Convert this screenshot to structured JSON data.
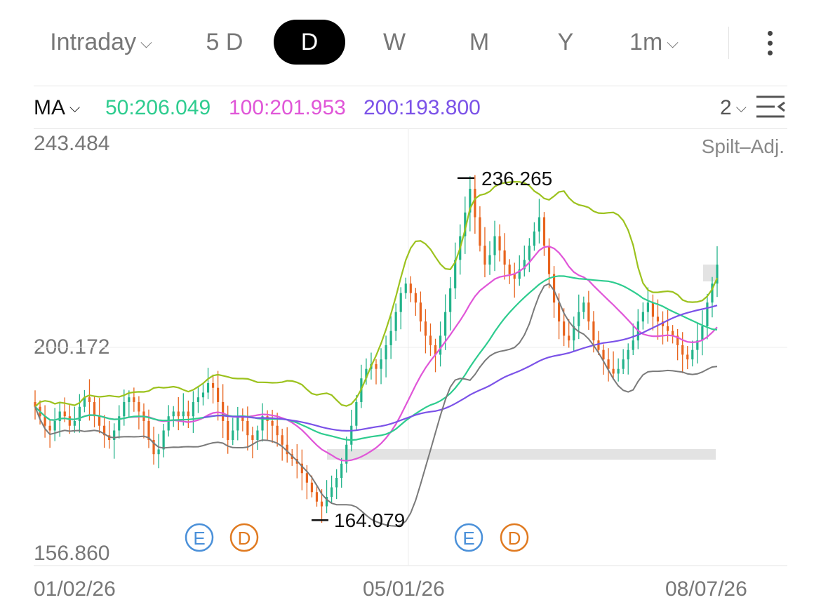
{
  "tabs": [
    {
      "label": "Intraday",
      "dropdown": true
    },
    {
      "label": "5 D",
      "dropdown": false
    },
    {
      "label": "D",
      "dropdown": false,
      "active": true
    },
    {
      "label": "W",
      "dropdown": false
    },
    {
      "label": "M",
      "dropdown": false
    },
    {
      "label": "Y",
      "dropdown": false
    },
    {
      "label": "1m",
      "dropdown": true
    }
  ],
  "ma_bar": {
    "selector": "MA",
    "ma50": {
      "label": "50:206.049",
      "color": "#2ecc8f"
    },
    "ma100": {
      "label": "100:201.953",
      "color": "#e056d8"
    },
    "ma200": {
      "label": "200:193.800",
      "color": "#7b52e8"
    },
    "settings_value": "2"
  },
  "icons": {
    "more": "more-vertical-icon",
    "settings": "indicator-settings-icon",
    "chevron": "chevron-down-icon"
  },
  "colors": {
    "up": "#22b38a",
    "down": "#e8641e",
    "bollinger": "#9cc21e",
    "ma50": "#2ecc8f",
    "ma100": "#e056d8",
    "ma200": "#7b52e8",
    "extra": "#7a7a7a",
    "earnings": "#4a90d9",
    "dividend": "#e07a20"
  },
  "chart_data": {
    "type": "candlestick",
    "y_axis": {
      "top_label": "243.484",
      "mid_label": "200.172",
      "bottom_label": "156.860",
      "ylim": [
        156.86,
        243.484
      ]
    },
    "adjustment_label": "Spilt–Adj.",
    "x_labels": [
      "01/02/26",
      "05/01/26",
      "08/07/26"
    ],
    "high_marker": {
      "label": "236.265",
      "value": 236.265
    },
    "low_marker": {
      "label": "164.079",
      "value": 164.079
    },
    "events": [
      {
        "type": "E",
        "label": "E",
        "near": "early Feb"
      },
      {
        "type": "D",
        "label": "D",
        "near": "early Feb"
      },
      {
        "type": "E",
        "label": "E",
        "near": "May"
      },
      {
        "type": "D",
        "label": "D",
        "near": "May"
      }
    ],
    "closes": [
      188,
      186,
      184,
      183,
      185,
      187,
      186,
      184,
      185,
      188,
      190,
      189,
      186,
      184,
      182,
      181,
      183,
      186,
      189,
      190,
      189,
      187,
      185,
      181,
      178,
      179,
      183,
      186,
      187,
      186,
      187,
      186,
      189,
      190,
      191,
      193,
      192,
      189,
      185,
      181,
      183,
      186,
      185,
      182,
      181,
      183,
      186,
      185,
      184,
      182,
      180,
      178,
      177,
      176,
      174,
      172,
      170,
      168,
      167,
      169,
      171,
      173,
      176,
      180,
      184,
      189,
      194,
      196,
      197,
      196,
      198,
      201,
      204,
      208,
      212,
      214,
      212,
      210,
      206,
      203,
      201,
      199,
      203,
      208,
      213,
      219,
      224,
      229,
      234,
      228,
      222,
      218,
      220,
      224,
      221,
      218,
      216,
      215,
      217,
      219,
      222,
      225,
      228,
      222,
      216,
      210,
      206,
      203,
      202,
      205,
      208,
      210,
      206,
      202,
      200,
      198,
      196,
      195,
      196,
      198,
      200,
      202,
      206,
      208,
      210,
      207,
      206,
      205,
      204,
      203,
      201,
      199,
      198,
      200,
      202,
      205,
      210,
      214,
      218
    ],
    "series": [
      {
        "name": "50",
        "last": 206.049
      },
      {
        "name": "100",
        "last": 201.953
      },
      {
        "name": "200",
        "last": 193.8
      }
    ]
  }
}
